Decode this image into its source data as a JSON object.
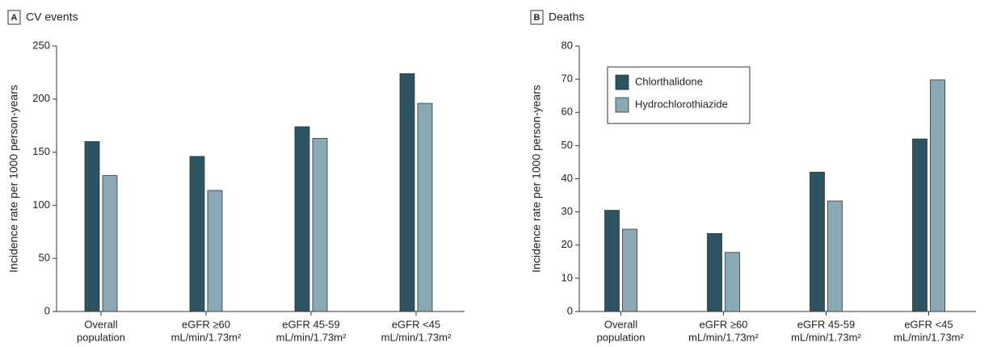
{
  "chart_data": [
    {
      "type": "bar",
      "panel": "A",
      "title": "CV events",
      "y_label": "Incidence rate per 1000 person-years",
      "categories": [
        [
          "Overall",
          "population"
        ],
        [
          "eGFR ≥60",
          "mL/min/1.73m²"
        ],
        [
          "eGFR 45-59",
          "mL/min/1.73m²"
        ],
        [
          "eGFR <45",
          "mL/min/1.73m²"
        ]
      ],
      "series": [
        {
          "name": "Chlorthalidone",
          "color": "#2c5461",
          "values": [
            160,
            146,
            174,
            224
          ]
        },
        {
          "name": "Hydrochlorothiazide",
          "color": "#8aa9b4",
          "values": [
            128,
            114,
            163,
            196
          ]
        }
      ],
      "ylim": [
        0,
        250
      ],
      "yticks": [
        0,
        50,
        100,
        150,
        200,
        250
      ]
    },
    {
      "type": "bar",
      "panel": "B",
      "title": "Deaths",
      "y_label": "Incidence rate per 1000 person-years",
      "categories": [
        [
          "Overall",
          "population"
        ],
        [
          "eGFR ≥60",
          "mL/min/1.73m²"
        ],
        [
          "eGFR 45-59",
          "mL/min/1.73m²"
        ],
        [
          "eGFR <45",
          "mL/min/1.73m²"
        ]
      ],
      "series": [
        {
          "name": "Chlorthalidone",
          "color": "#2c5461",
          "values": [
            30.5,
            23.5,
            42,
            52
          ]
        },
        {
          "name": "Hydrochlorothiazide",
          "color": "#8aa9b4",
          "values": [
            24.8,
            17.8,
            33.3,
            69.8
          ]
        }
      ],
      "ylim": [
        0,
        80
      ],
      "yticks": [
        0,
        10,
        20,
        30,
        40,
        50,
        60,
        70,
        80
      ],
      "legend": "upper left"
    }
  ]
}
